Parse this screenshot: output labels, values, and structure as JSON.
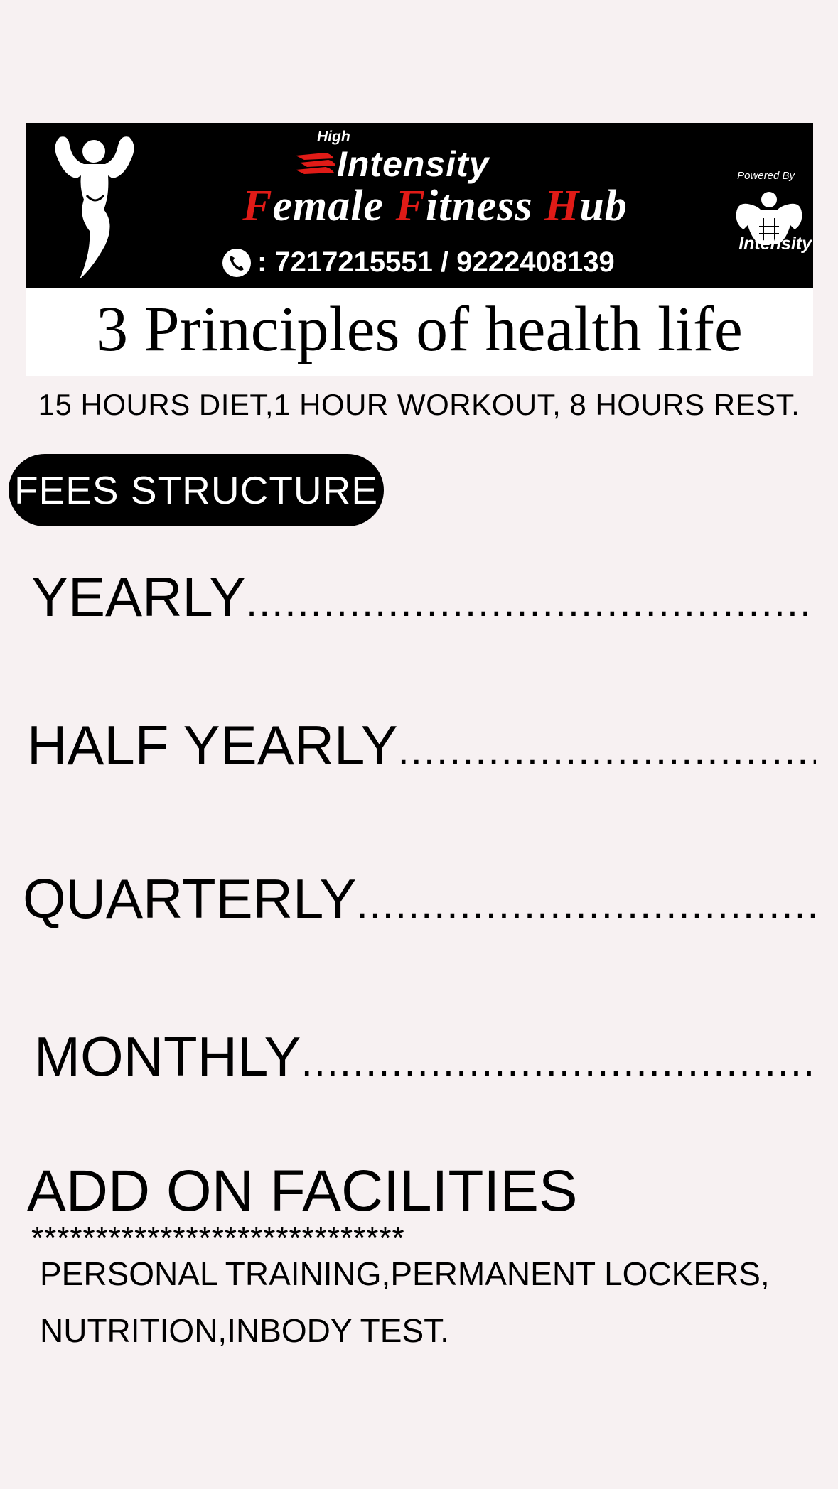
{
  "banner": {
    "brand_high": "High",
    "brand_intensity": "Intensity",
    "title_parts": [
      "F",
      "emale ",
      "F",
      "itness ",
      "H",
      "ub"
    ],
    "phone": ": 7217215551 / 9222408139",
    "powered_by": "Powered By",
    "sponsor_logo_text": "Intensity"
  },
  "principles": {
    "title": "3 Principles of health life",
    "subtitle": "15 HOURS DIET,1 HOUR WORKOUT, 8 HOURS REST."
  },
  "fees": {
    "heading": "FEES STRUCTURE",
    "rows": [
      {
        "label": "YEARLY",
        "dots": ".................................................."
      },
      {
        "label": "HALF YEARLY",
        "dots": ".................................................."
      },
      {
        "label": "QUARTERLY",
        "dots": ".................................................."
      },
      {
        "label": "MONTHLY",
        "dots": ".................................................."
      }
    ]
  },
  "addons": {
    "heading": "ADD ON FACILITIES",
    "stars": "*****************************",
    "line1": "PERSONAL TRAINING,PERMANENT LOCKERS,",
    "line2": "NUTRITION,INBODY TEST."
  },
  "colors": {
    "background": "#f7f1f2",
    "banner": "#000000",
    "accent_red": "#e01b17"
  },
  "icons": [
    "female-bodybuilder-logo-icon",
    "flame-icon",
    "phone-icon",
    "male-bodybuilder-logo-icon"
  ]
}
